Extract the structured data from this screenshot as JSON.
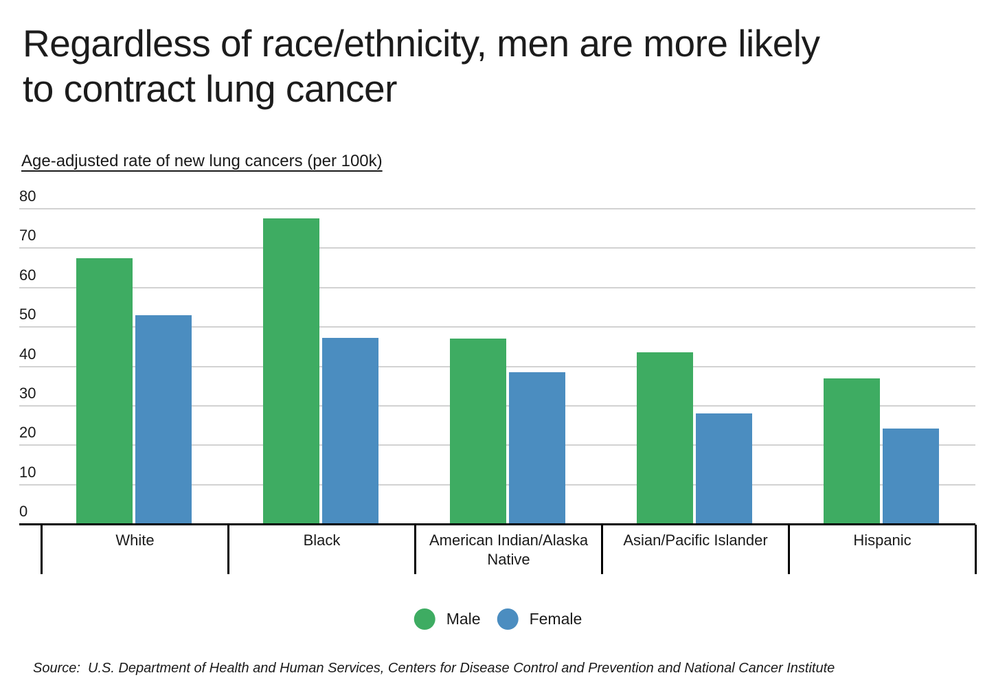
{
  "header": {
    "title": "Regardless of race/ethnicity, men are more likely to contract lung cancer",
    "title_lines": [
      "Regardless of race/ethnicity, men are more likely",
      "to contract lung cancer"
    ],
    "subtitle": "Age-adjusted rate of new lung cancers (per 100k)"
  },
  "chart_data": {
    "type": "bar",
    "title": "Regardless of race/ethnicity, men are more likely to contract lung cancer",
    "subtitle": "Age-adjusted rate of new lung cancers (per 100k)",
    "categories": [
      "White",
      "Black",
      "American Indian/Alaska Native",
      "Asian/Pacific Islander",
      "Hispanic"
    ],
    "series": [
      {
        "name": "Male",
        "color": "#3EAC62",
        "values": [
          67.5,
          77.5,
          47.1,
          43.5,
          37.0
        ]
      },
      {
        "name": "Female",
        "color": "#4B8DC0",
        "values": [
          53.0,
          47.2,
          38.6,
          28.0,
          24.3
        ]
      }
    ],
    "ylim": [
      0,
      80
    ],
    "yticks": [
      0,
      10,
      20,
      30,
      40,
      50,
      60,
      70,
      80
    ],
    "grid": "horizontal",
    "legend_position": "bottom",
    "colors": {
      "grid": "#d2d2d2",
      "axis": "#000000",
      "text": "#1a1a1a"
    }
  },
  "legend": {
    "items": [
      {
        "label": "Male",
        "color": "#3EAC62"
      },
      {
        "label": "Female",
        "color": "#4B8DC0"
      }
    ]
  },
  "source": {
    "text": "Source:  U.S. Department of Health and Human Services, Centers for Disease Control and Prevention and National Cancer Institute"
  }
}
